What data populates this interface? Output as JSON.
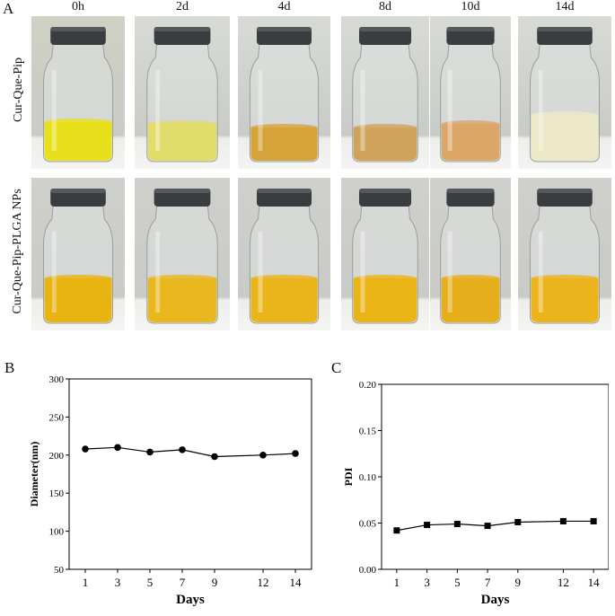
{
  "panels": {
    "a": "A",
    "b": "B",
    "c": "C"
  },
  "photo_panel": {
    "time_labels": [
      "0h",
      "2d",
      "4d",
      "8d",
      "10d",
      "14d"
    ],
    "row_labels": [
      "Cur-Que-Pip",
      "Cur-Que-Pip-PLGA NPs"
    ],
    "liquid_color_row1": [
      "#e8e01a",
      "#e2dc6a",
      "#d6a23a",
      "#cfa45a",
      "#dba868",
      "#ece8c8"
    ],
    "liquid_color_row2": [
      "#e9b312",
      "#e8b81e",
      "#e9b51a",
      "#eab416",
      "#e6ae1a",
      "#ebb41c"
    ]
  },
  "chart_data": [
    {
      "type": "line",
      "panel": "B",
      "title": "",
      "xlabel": "Days",
      "ylabel": "Diameter(nm)",
      "x": [
        1,
        3,
        5,
        7,
        9,
        12,
        14
      ],
      "x_ticks": [
        "1",
        "3",
        "5",
        "7",
        "9",
        "12",
        "14"
      ],
      "y_ticks": [
        "50",
        "100",
        "150",
        "200",
        "250",
        "300"
      ],
      "ylim": [
        50,
        300
      ],
      "marker": "circle",
      "grid": false,
      "series": [
        {
          "values": [
            208,
            210,
            204,
            207,
            198,
            200,
            202
          ]
        }
      ]
    },
    {
      "type": "line",
      "panel": "C",
      "title": "",
      "xlabel": "Days",
      "ylabel": "PDI",
      "x": [
        1,
        3,
        5,
        7,
        9,
        12,
        14
      ],
      "x_ticks": [
        "1",
        "3",
        "5",
        "7",
        "9",
        "12",
        "14"
      ],
      "y_ticks": [
        "0.00",
        "0.05",
        "0.10",
        "0.15",
        "0.20"
      ],
      "ylim": [
        0,
        0.2
      ],
      "marker": "square",
      "grid": false,
      "series": [
        {
          "values": [
            0.042,
            0.048,
            0.049,
            0.047,
            0.051,
            0.052,
            0.052
          ]
        }
      ]
    }
  ]
}
